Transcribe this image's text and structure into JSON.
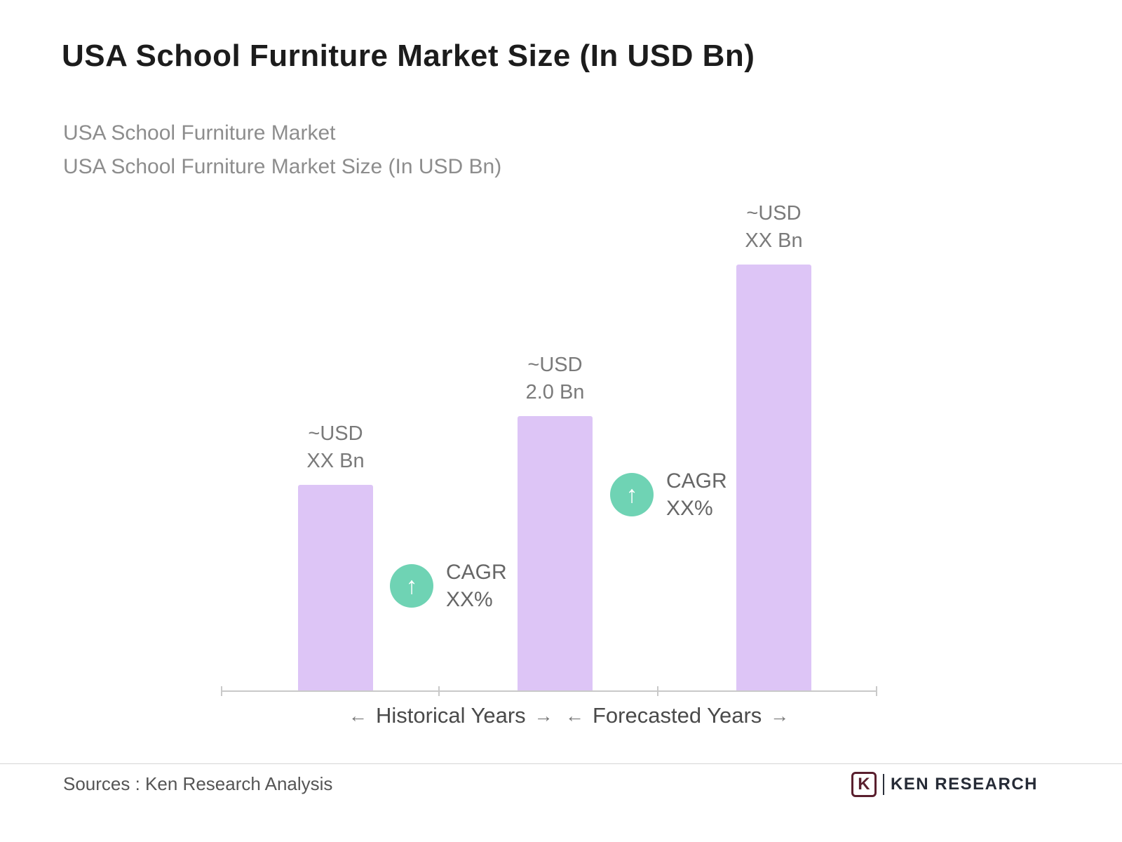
{
  "header": {
    "title": "USA School Furniture Market Size (In USD Bn)",
    "subtitle_line1": "USA School Furniture Market",
    "subtitle_line2": "USA School Furniture Market Size (In USD Bn)"
  },
  "chart_data": {
    "type": "bar",
    "title": "USA School Furniture Market Size (In USD Bn)",
    "unit": "USD Bn",
    "ylim": [
      0,
      3.5
    ],
    "grid": false,
    "legend": "none",
    "bars": [
      {
        "category": "Historical Years",
        "value": 1.5,
        "label_line1": "~USD",
        "label_line2": "XX Bn"
      },
      {
        "category": "Historical Years",
        "value": 2.0,
        "label_line1": "~USD",
        "label_line2": "2.0 Bn"
      },
      {
        "category": "Forecasted Years",
        "value": 3.1,
        "label_line1": "~USD",
        "label_line2": "XX Bn"
      }
    ],
    "cagr_annotations": [
      {
        "line1": "CAGR",
        "line2": "XX%"
      },
      {
        "line1": "CAGR",
        "line2": "XX%"
      }
    ],
    "axis_groups": [
      {
        "label": "Historical Years"
      },
      {
        "label": "Forecasted Years"
      }
    ],
    "icons": {
      "up_arrow": "↑",
      "left_arrow": "←",
      "right_arrow": "→"
    },
    "colors": {
      "bar": "#DDC5F6",
      "cagr_circle": "#6FD3B4",
      "title": "#1c1c1c",
      "subtitle": "#8d8d8d",
      "axis": "#c9c9c9"
    }
  },
  "footer": {
    "sources": "Sources : Ken Research Analysis",
    "logo_letter": "K",
    "logo_text": "KEN RESEARCH"
  }
}
